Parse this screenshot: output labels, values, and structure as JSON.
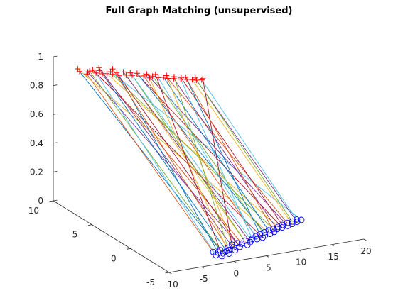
{
  "chart_data": {
    "type": "scatter",
    "title": "Full Graph Matching (unsupervised)",
    "xlabel": "",
    "ylabel": "",
    "zlabel": "",
    "xlim": [
      -10,
      20
    ],
    "ylim": [
      -5,
      10
    ],
    "zlim": [
      0,
      1
    ],
    "x_ticks": [
      "-10",
      "-5",
      "0",
      "5",
      "10",
      "15",
      "20"
    ],
    "y_ticks": [
      "-5",
      "0",
      "5",
      "10"
    ],
    "z_ticks": [
      "0",
      "0.2",
      "0.4",
      "0.6",
      "0.8",
      "1"
    ],
    "grid": false,
    "colors": {
      "source_marker": "#ff0000",
      "target_marker": "#0000ff",
      "match_lines": [
        "#0072bd",
        "#d95319",
        "#edb120",
        "#7e2f8e",
        "#77ac30",
        "#4dbeee",
        "#a2142f"
      ]
    },
    "series": [
      {
        "marker": "plus",
        "z": 0.9,
        "points": [
          [
            -6.9,
            9.2
          ],
          [
            -6.5,
            8.6
          ],
          [
            -6.6,
            9.7
          ],
          [
            -6.0,
            8.9
          ],
          [
            -5.6,
            9.0
          ],
          [
            -5.2,
            8.5
          ],
          [
            -5.0,
            9.1
          ],
          [
            -4.6,
            8.2
          ],
          [
            -4.3,
            8.8
          ],
          [
            -4.0,
            8.1
          ],
          [
            -3.8,
            9.3
          ],
          [
            -3.5,
            7.8
          ],
          [
            -3.2,
            8.3
          ],
          [
            -3.0,
            7.4
          ],
          [
            -2.6,
            8.0
          ],
          [
            -2.4,
            8.7
          ],
          [
            -2.0,
            7.3
          ],
          [
            -1.7,
            7.9
          ],
          [
            -1.3,
            7.1
          ],
          [
            -1.0,
            7.6
          ],
          [
            -0.6,
            6.8
          ],
          [
            -0.3,
            7.3
          ],
          [
            0.0,
            6.7
          ],
          [
            0.3,
            6.2
          ],
          [
            0.7,
            6.9
          ],
          [
            1.0,
            6.4
          ],
          [
            1.4,
            6.0
          ],
          [
            1.7,
            6.6
          ],
          [
            2.1,
            5.9
          ],
          [
            2.4,
            5.6
          ],
          [
            2.8,
            6.1
          ],
          [
            3.1,
            5.4
          ],
          [
            3.5,
            5.7
          ],
          [
            3.8,
            5.1
          ],
          [
            4.1,
            5.3
          ],
          [
            4.5,
            4.9
          ],
          [
            4.8,
            5.3
          ],
          [
            5.1,
            4.7
          ],
          [
            5.5,
            4.5
          ],
          [
            5.8,
            4.9
          ],
          [
            6.2,
            4.4
          ],
          [
            6.6,
            4.6
          ]
        ]
      },
      {
        "marker": "circle",
        "z": 0.0,
        "points": [
          [
            -1.0,
            -3.5
          ],
          [
            -0.7,
            -2.9
          ],
          [
            -0.4,
            -3.8
          ],
          [
            -0.2,
            -3.1
          ],
          [
            0.2,
            -3.4
          ],
          [
            0.5,
            -2.8
          ],
          [
            0.9,
            -3.6
          ],
          [
            1.1,
            -3.1
          ],
          [
            1.6,
            -3.0
          ],
          [
            1.9,
            -2.6
          ],
          [
            2.3,
            -3.2
          ],
          [
            2.7,
            -2.7
          ],
          [
            3.0,
            -2.2
          ],
          [
            3.5,
            -2.8
          ],
          [
            3.9,
            -2.1
          ],
          [
            4.4,
            -2.3
          ],
          [
            4.8,
            -2.7
          ],
          [
            5.3,
            -1.9
          ],
          [
            5.7,
            -2.3
          ],
          [
            6.2,
            -2.0
          ],
          [
            6.6,
            -1.8
          ],
          [
            7.1,
            -2.0
          ],
          [
            7.5,
            -1.5
          ],
          [
            8.1,
            -1.9
          ],
          [
            8.4,
            -1.3
          ],
          [
            8.8,
            -1.6
          ],
          [
            9.3,
            -1.1
          ],
          [
            9.7,
            -1.5
          ],
          [
            10.2,
            -0.9
          ],
          [
            10.6,
            -1.3
          ],
          [
            11.0,
            -0.8
          ],
          [
            11.5,
            -0.9
          ],
          [
            12.0,
            -0.6
          ],
          [
            12.4,
            -0.8
          ],
          [
            12.9,
            -0.4
          ],
          [
            13.4,
            -0.7
          ],
          [
            13.9,
            -0.2
          ],
          [
            14.3,
            -0.5
          ],
          [
            14.8,
            -0.1
          ],
          [
            15.3,
            -0.3
          ],
          [
            15.7,
            0.1
          ],
          [
            16.2,
            -0.1
          ]
        ]
      }
    ]
  }
}
